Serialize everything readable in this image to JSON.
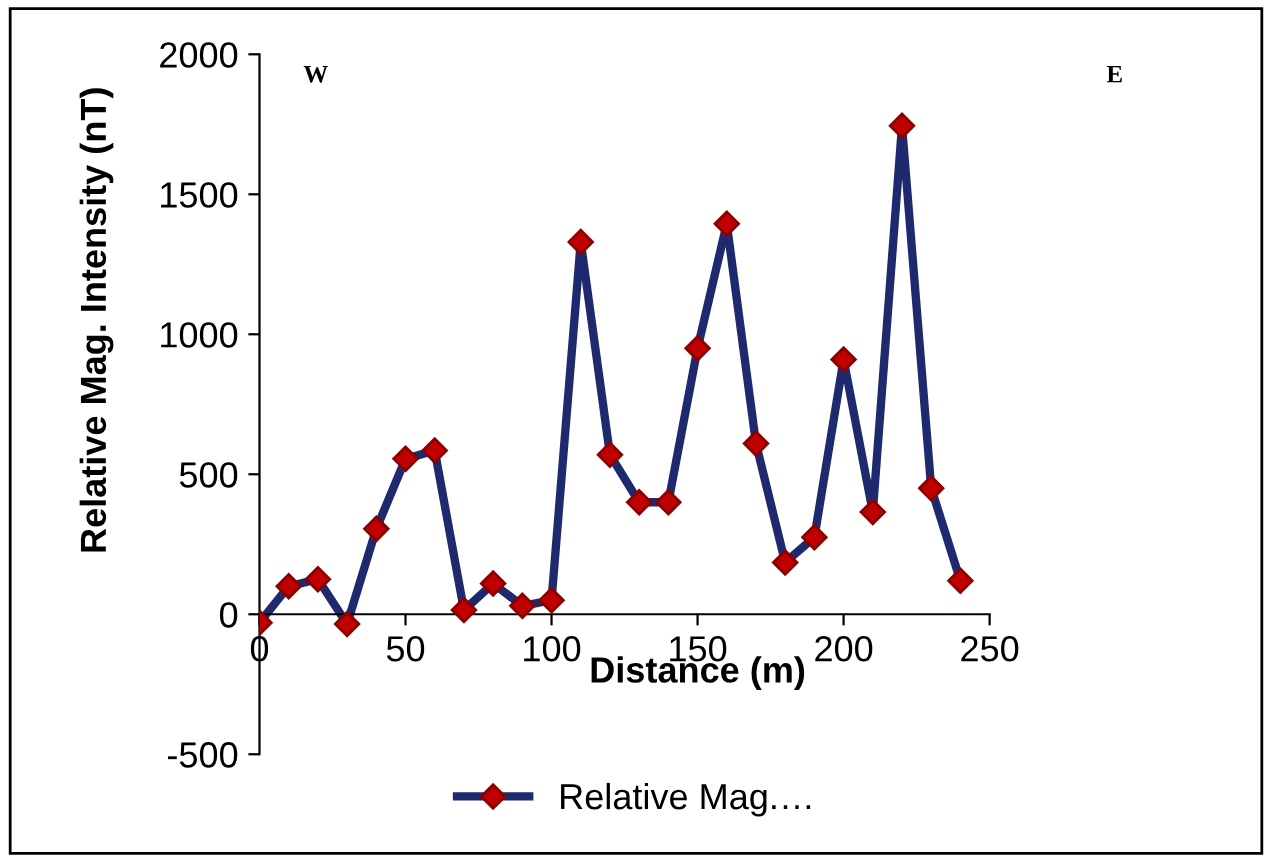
{
  "chart_data": {
    "type": "line",
    "xlabel": "Distance (m)",
    "ylabel": "Relative Mag. Intensity (nT)",
    "annotations": [
      "W",
      "E"
    ],
    "x": [
      0,
      10,
      20,
      30,
      40,
      50,
      60,
      70,
      80,
      90,
      100,
      110,
      120,
      130,
      140,
      150,
      160,
      170,
      180,
      190,
      200,
      210,
      220,
      230,
      240
    ],
    "series": [
      {
        "name": "Relative Mag.…",
        "color": "#1f2a6e",
        "values": [
          -30,
          100,
          125,
          -35,
          305,
          555,
          585,
          15,
          110,
          30,
          50,
          1330,
          570,
          400,
          400,
          950,
          1395,
          610,
          185,
          275,
          910,
          365,
          1745,
          450,
          120
        ]
      }
    ],
    "xlim": [
      0,
      250
    ],
    "xticks": [
      0,
      50,
      100,
      150,
      200,
      250
    ],
    "ylim": [
      -500,
      2000
    ],
    "yticks": [
      -500,
      0,
      500,
      1000,
      1500,
      2000
    ],
    "marker": "diamond",
    "line_style": "solid",
    "grid": false,
    "legend": "bottom"
  }
}
